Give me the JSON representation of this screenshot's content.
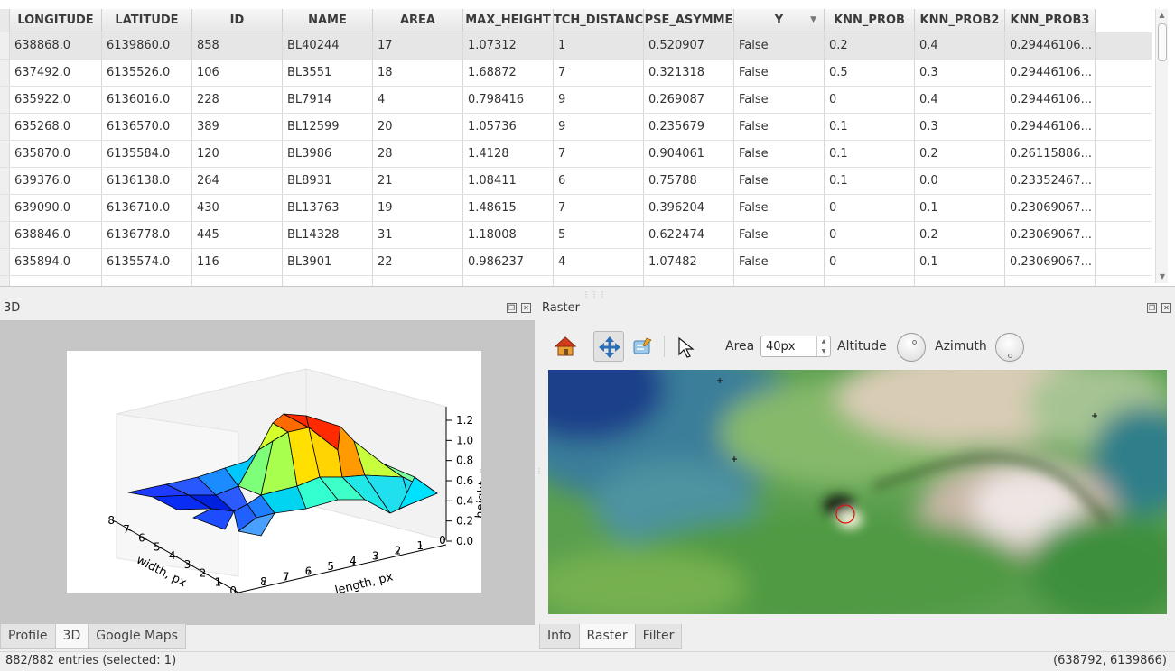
{
  "table": {
    "columns": [
      "LONGITUDE",
      "LATITUDE",
      "ID",
      "NAME",
      "AREA",
      "MAX_HEIGHT",
      "TCH_DISTANC",
      "PSE_ASYMME",
      "Y",
      "KNN_PROB",
      "KNN_PROB2",
      "KNN_PROB3"
    ],
    "rows": [
      [
        "638868.0",
        "6139860.0",
        "858",
        "BL40244",
        "17",
        "1.07312",
        "1",
        "0.520907",
        "False",
        "0.2",
        "0.4",
        "0.29446106..."
      ],
      [
        "637492.0",
        "6135526.0",
        "106",
        "BL3551",
        "18",
        "1.68872",
        "7",
        "0.321318",
        "False",
        "0.5",
        "0.3",
        "0.29446106..."
      ],
      [
        "635922.0",
        "6136016.0",
        "228",
        "BL7914",
        "4",
        "0.798416",
        "9",
        "0.269087",
        "False",
        "0",
        "0.4",
        "0.29446106..."
      ],
      [
        "635268.0",
        "6136570.0",
        "389",
        "BL12599",
        "20",
        "1.05736",
        "9",
        "0.235679",
        "False",
        "0.1",
        "0.3",
        "0.29446106..."
      ],
      [
        "635870.0",
        "6135584.0",
        "120",
        "BL3986",
        "28",
        "1.4128",
        "7",
        "0.904061",
        "False",
        "0.1",
        "0.2",
        "0.26115886..."
      ],
      [
        "639376.0",
        "6136138.0",
        "264",
        "BL8931",
        "21",
        "1.08411",
        "6",
        "0.75788",
        "False",
        "0.1",
        "0.0",
        "0.23352467..."
      ],
      [
        "639090.0",
        "6136710.0",
        "430",
        "BL13763",
        "19",
        "1.48615",
        "7",
        "0.396204",
        "False",
        "0",
        "0.1",
        "0.23069067..."
      ],
      [
        "638846.0",
        "6136778.0",
        "445",
        "BL14328",
        "31",
        "1.18008",
        "5",
        "0.622474",
        "False",
        "0",
        "0.2",
        "0.23069067..."
      ],
      [
        "635894.0",
        "6135574.0",
        "116",
        "BL3901",
        "22",
        "0.986237",
        "4",
        "1.07482",
        "False",
        "0",
        "0.1",
        "0.23069067..."
      ]
    ],
    "selected_row": 0
  },
  "pane_3d": {
    "title": "3D",
    "plot": {
      "zlabel": "height, m",
      "xlabel": "width, px",
      "ylabel": "length, px",
      "z_ticks": [
        "0.0",
        "0.2",
        "0.4",
        "0.6",
        "0.8",
        "1.0",
        "1.2"
      ],
      "width_ticks": [
        "8",
        "7",
        "6",
        "5",
        "4",
        "3",
        "2",
        "1",
        "0"
      ],
      "length_ticks": [
        "8",
        "7",
        "6",
        "5",
        "4",
        "3",
        "2",
        "1",
        "0"
      ]
    }
  },
  "tabs_left": [
    "Profile",
    "3D",
    "Google Maps"
  ],
  "tabs_left_active": 1,
  "pane_raster": {
    "title": "Raster",
    "toolbar": {
      "area_label": "Area",
      "area_value": "40px",
      "altitude_label": "Altitude",
      "azimuth_label": "Azimuth"
    }
  },
  "tabs_right": [
    "Info",
    "Raster",
    "Filter"
  ],
  "tabs_right_active": 1,
  "status": {
    "entries": "882/882 entries (selected: 1)",
    "coords": "(638792, 6139866)"
  },
  "colors": {
    "selected_row": "#e6e6e6",
    "plot_background": "#c6c6c6"
  },
  "icons": {
    "home": "home-icon",
    "pan": "pan-arrows-icon",
    "identify": "identify-icon",
    "pointer": "pointer-icon"
  }
}
